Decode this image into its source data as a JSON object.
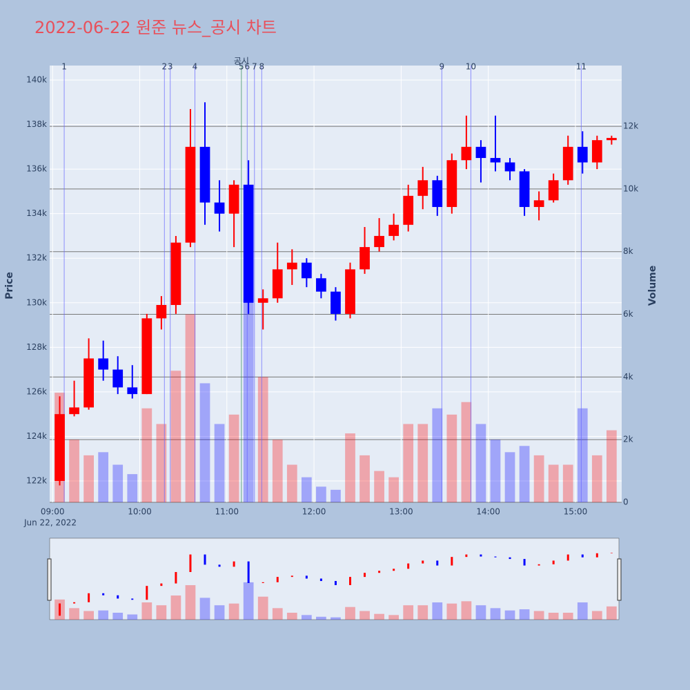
{
  "chart_data": {
    "type": "candlestick",
    "title": "2022-06-22 원준 뉴스_공시 차트",
    "y_title": "Price",
    "y2_title": "Volume",
    "x_date_label": "Jun 22, 2022",
    "x": [
      "09:00",
      "09:10",
      "09:20",
      "09:30",
      "09:40",
      "09:50",
      "10:00",
      "10:10",
      "10:20",
      "10:30",
      "10:40",
      "10:50",
      "11:00",
      "11:10",
      "11:20",
      "11:30",
      "11:40",
      "11:50",
      "12:00",
      "12:10",
      "12:20",
      "12:30",
      "12:40",
      "12:50",
      "13:00",
      "13:10",
      "13:20",
      "13:30",
      "13:40",
      "13:50",
      "14:00",
      "14:10",
      "14:20",
      "14:30",
      "14:40",
      "14:50",
      "15:00",
      "15:10",
      "15:20"
    ],
    "open": [
      122000,
      125000,
      125300,
      127500,
      127000,
      126200,
      125900,
      129300,
      129900,
      132700,
      137000,
      134500,
      134000,
      135300,
      130000,
      130200,
      131500,
      131800,
      131100,
      130500,
      129500,
      131500,
      132500,
      133000,
      133500,
      134800,
      135500,
      134300,
      136400,
      137000,
      136500,
      136300,
      135900,
      134300,
      134600,
      135500,
      137000,
      136300,
      137300
    ],
    "high": [
      125800,
      126500,
      128400,
      128300,
      127600,
      127200,
      129500,
      130300,
      133000,
      138700,
      139000,
      135500,
      135500,
      136400,
      130600,
      132700,
      132400,
      132000,
      131300,
      130700,
      131800,
      133400,
      133800,
      134000,
      135300,
      136100,
      135700,
      136700,
      138400,
      137300,
      138400,
      136500,
      136000,
      135000,
      135800,
      137500,
      137700,
      137500,
      137500
    ],
    "low": [
      121800,
      124900,
      125200,
      126500,
      125900,
      125700,
      125900,
      128800,
      129500,
      132500,
      133500,
      133200,
      132500,
      129500,
      128800,
      130000,
      130800,
      130700,
      130200,
      129200,
      129300,
      131300,
      132300,
      132800,
      133200,
      134200,
      133900,
      134000,
      136000,
      135400,
      135900,
      135500,
      133900,
      133700,
      134500,
      135300,
      135800,
      136000,
      137100
    ],
    "close": [
      125000,
      125300,
      127500,
      127000,
      126200,
      125900,
      129300,
      129900,
      132700,
      137000,
      134500,
      134000,
      135300,
      130000,
      130200,
      131500,
      131800,
      131100,
      130500,
      129500,
      131500,
      132500,
      133000,
      133500,
      134800,
      135500,
      134300,
      136400,
      137000,
      136500,
      136300,
      135900,
      134300,
      134600,
      135500,
      137000,
      136300,
      137300,
      137400
    ],
    "volume": [
      3500,
      2000,
      1500,
      1600,
      1200,
      900,
      3000,
      2500,
      4200,
      6000,
      3800,
      2500,
      2800,
      6500,
      4000,
      2000,
      1200,
      800,
      500,
      400,
      2200,
      1500,
      1000,
      800,
      2500,
      2500,
      3000,
      2800,
      3200,
      2500,
      2000,
      1600,
      1800,
      1500,
      1200,
      1200,
      3000,
      1500,
      2300
    ],
    "increasing_color": "#ff0000",
    "decreasing_color": "#0000ff",
    "xlim": [
      "08:58",
      "15:29"
    ],
    "xticks": [
      "09:00",
      "10:00",
      "11:00",
      "12:00",
      "13:00",
      "14:00",
      "15:00"
    ],
    "ylim": [
      121040,
      140650
    ],
    "yticks": [
      {
        "value": 122000,
        "label": "122k"
      },
      {
        "value": 124000,
        "label": "124k"
      },
      {
        "value": 126000,
        "label": "126k"
      },
      {
        "value": 128000,
        "label": "128k"
      },
      {
        "value": 130000,
        "label": "130k"
      },
      {
        "value": 132000,
        "label": "132k"
      },
      {
        "value": 134000,
        "label": "134k"
      },
      {
        "value": 136000,
        "label": "136k"
      },
      {
        "value": 138000,
        "label": "138k"
      },
      {
        "value": 140000,
        "label": "140k"
      }
    ],
    "y2lim": [
      0,
      13940
    ],
    "y2ticks": [
      0,
      {
        "value": 2000,
        "label": "2k"
      },
      {
        "value": 4000,
        "label": "4k"
      },
      {
        "value": 6000,
        "label": "6k"
      },
      {
        "value": 8000,
        "label": "8k"
      },
      {
        "value": 10000,
        "label": "10k"
      },
      {
        "value": 12000,
        "label": "12k"
      }
    ],
    "news": [
      {
        "x": "09:08",
        "label": "1"
      },
      {
        "x": "10:17",
        "label": "2"
      },
      {
        "x": "10:21",
        "label": "3"
      },
      {
        "x": "10:38",
        "label": "4"
      },
      {
        "x": "11:10",
        "label": "5"
      },
      {
        "x": "11:14",
        "label": "6"
      },
      {
        "x": "11:19",
        "label": "7"
      },
      {
        "x": "11:24",
        "label": "8"
      },
      {
        "x": "13:28",
        "label": "9"
      },
      {
        "x": "13:48",
        "label": "10"
      },
      {
        "x": "15:04",
        "label": "11"
      }
    ],
    "disclosure": {
      "x": "11:10",
      "label": "공시"
    },
    "range_slider": true
  }
}
